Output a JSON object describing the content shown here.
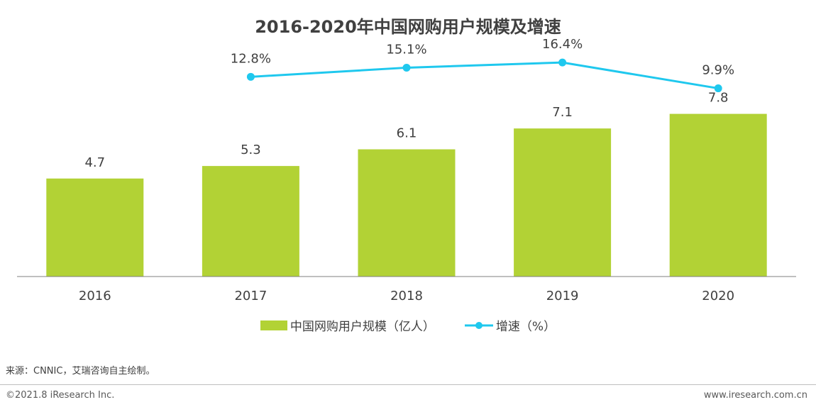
{
  "chart_data": {
    "type": "bar",
    "title": "2016-2020年中国网购用户规模及增速",
    "categories": [
      "2016",
      "2017",
      "2018",
      "2019",
      "2020"
    ],
    "series": [
      {
        "name": "中国网购用户规模（亿人）",
        "type": "bar",
        "color": "#b2d235",
        "values": [
          4.7,
          5.3,
          6.1,
          7.1,
          7.8
        ],
        "labels": [
          "4.7",
          "5.3",
          "6.1",
          "7.1",
          "7.8"
        ]
      },
      {
        "name": "增速（%）",
        "type": "line",
        "color": "#1fc8ee",
        "values": [
          null,
          12.8,
          15.1,
          16.4,
          9.9
        ],
        "labels": [
          "",
          "12.8%",
          "15.1%",
          "16.4%",
          "9.9%"
        ]
      }
    ],
    "xlabel": "",
    "ylabel": "",
    "ylim": [
      0,
      8.5
    ],
    "y2lim": [
      0,
      25
    ],
    "grid": false,
    "legend_position": "bottom"
  },
  "footer": {
    "source": "来源：CNNIC，艾瑞咨询自主绘制。",
    "copyright": "©2021.8 iResearch Inc.",
    "website": "www.iresearch.com.cn"
  }
}
